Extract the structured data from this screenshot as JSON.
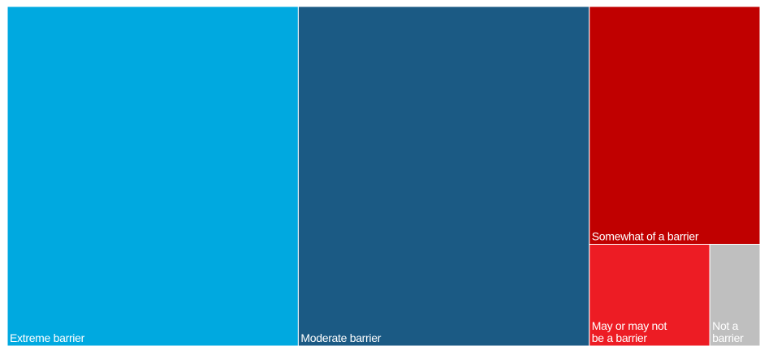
{
  "chart_data": {
    "type": "treemap",
    "title": "",
    "items": [
      {
        "label": "Extreme barrier",
        "label_lines": [
          "Extreme barrier"
        ],
        "value": 38.7,
        "color": "#00A9E0"
      },
      {
        "label": "Moderate barrier",
        "label_lines": [
          "Moderate barrier"
        ],
        "value": 38.7,
        "color": "#1B5A84"
      },
      {
        "label": "Somewhat of a barrier",
        "label_lines": [
          "Somewhat of a barrier"
        ],
        "value": 15.9,
        "color": "#C00000"
      },
      {
        "label": "May or may not be a barrier",
        "label_lines": [
          "May or may not",
          "be a barrier"
        ],
        "value": 4.8,
        "color": "#ED1C24"
      },
      {
        "label": "Not a barrier",
        "label_lines": [
          "Not a",
          "barrier"
        ],
        "value": 2.0,
        "color": "#BFBFBF"
      }
    ]
  }
}
